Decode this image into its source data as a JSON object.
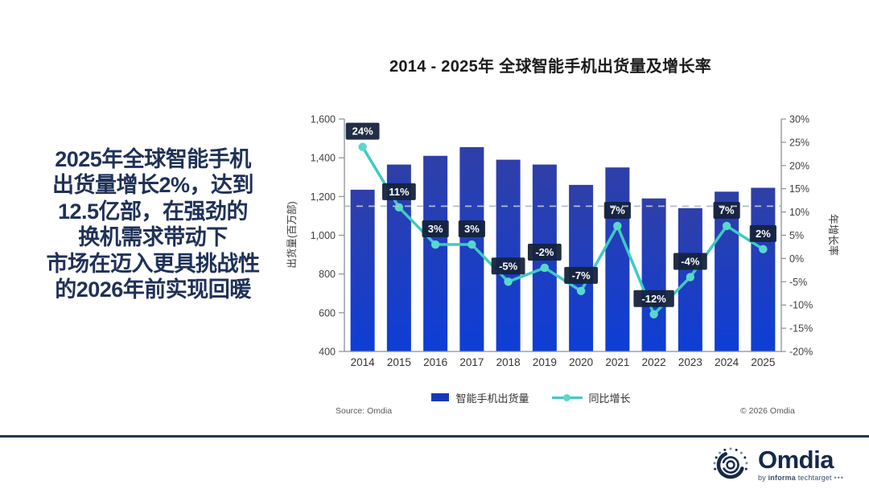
{
  "title": "2014 - 2025年 全球智能手机出货量及增长率",
  "callout": {
    "lines": [
      "2025年全球智能手机",
      "出货量增长2%，达到",
      "12.5亿部，在强劲的",
      "换机需求带动下",
      "市场在迈入更具挑战性",
      "的2026年前实现回暖"
    ]
  },
  "chart_data": {
    "type": "bar+line",
    "title": "2014 - 2025年 全球智能手机出货量及增长率",
    "categories": [
      "2014",
      "2015",
      "2016",
      "2017",
      "2018",
      "2019",
      "2020",
      "2021",
      "2022",
      "2023",
      "2024",
      "2025"
    ],
    "series": [
      {
        "name": "智能手机出货量",
        "type": "bar",
        "axis": "left",
        "values": [
          1235,
          1365,
          1410,
          1455,
          1390,
          1365,
          1260,
          1350,
          1190,
          1140,
          1225,
          1245
        ]
      },
      {
        "name": "同比增长",
        "type": "line",
        "axis": "right",
        "values": [
          24,
          11,
          3,
          3,
          -5,
          -2,
          -7,
          7,
          -12,
          -4,
          7,
          2
        ],
        "labels": [
          "24%",
          "11%",
          "3%",
          "3%",
          "-5%",
          "-2%",
          "-7%",
          "7%",
          "-12%",
          "-4%",
          "7%",
          "2%"
        ]
      }
    ],
    "left_axis": {
      "label": "出货量(百万部)",
      "min": 400,
      "max": 1600,
      "tick_values": [
        400,
        600,
        800,
        1000,
        1200,
        1400,
        1600
      ],
      "tick_labels": [
        "400",
        "600",
        "800",
        "1,000",
        "1,200",
        "1,400",
        "1,600"
      ]
    },
    "right_axis": {
      "label": "年增长率",
      "min": -20,
      "max": 30,
      "tick_values": [
        -20,
        -15,
        -10,
        -5,
        0,
        5,
        10,
        15,
        20,
        25,
        30
      ],
      "tick_labels": [
        "-20%",
        "-15%",
        "-10%",
        "-5%",
        "0%",
        "5%",
        "10%",
        "15%",
        "20%",
        "25%",
        "30%"
      ]
    },
    "reference_line": {
      "value": 1150,
      "axis": "left",
      "style": "dashed"
    },
    "legend": [
      {
        "label": "智能手机出货量",
        "marker": "bar"
      },
      {
        "label": "同比增长",
        "marker": "line"
      }
    ],
    "legend_position": "bottom",
    "grid": false,
    "colors": {
      "bar_top": "#2f3fa8",
      "bar_bottom": "#0e3ed6",
      "legend_bar": "#1638b8",
      "line": "#3fcac2",
      "marker": "#58d8cd",
      "label_bg": "#16233d",
      "label_text": "#ffffff",
      "dashed": "#b3bcc6",
      "axis": "#8a8f96",
      "tick_text": "#404040",
      "x_text": "#333333",
      "axis_title": "#3a3a3a"
    }
  },
  "footer": {
    "source": "Source: Omdia",
    "copyright": "© 2026 Omdia"
  },
  "brand": {
    "navy": "#16294a",
    "footer_bar": "#243450",
    "callout_text": "#1f3158"
  },
  "logo": {
    "name": "Omdia",
    "tagline_by": "by",
    "tagline_informa": "informa",
    "tagline_techtarget": "techtarget",
    "tagline_dots": "•••"
  }
}
